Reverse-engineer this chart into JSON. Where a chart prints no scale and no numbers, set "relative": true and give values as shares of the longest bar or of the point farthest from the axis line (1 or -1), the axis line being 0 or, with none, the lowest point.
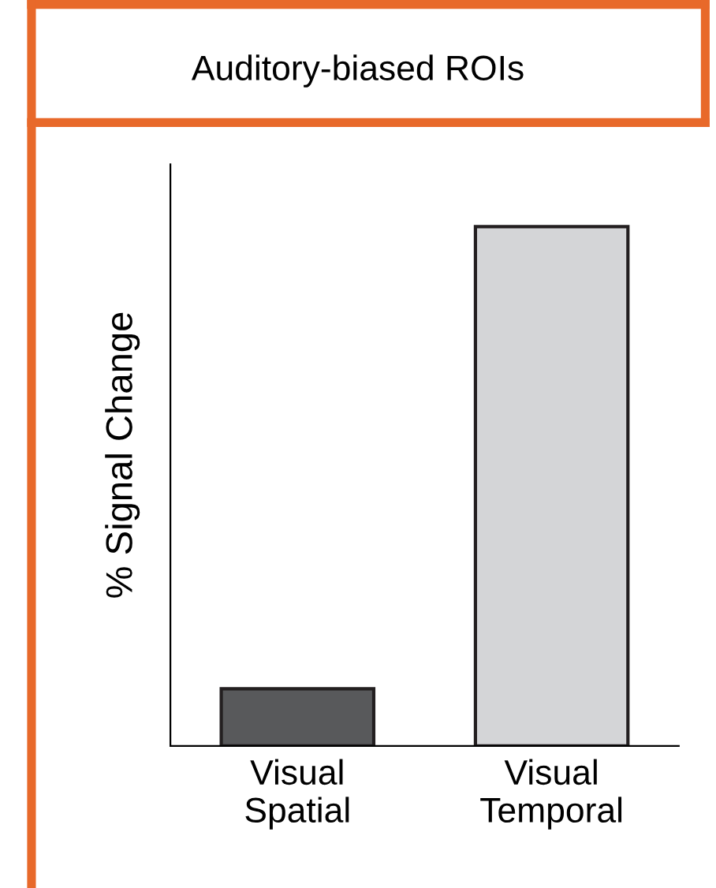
{
  "chart_data": {
    "type": "bar",
    "title": "Auditory-biased ROIs",
    "ylabel": "% Signal Change",
    "categories": [
      "Visual\nSpatial",
      "Visual\nTemporal"
    ],
    "values": [
      0.11,
      1
    ],
    "colors": [
      "#58595b",
      "#d4d5d7"
    ],
    "relative": true
  }
}
